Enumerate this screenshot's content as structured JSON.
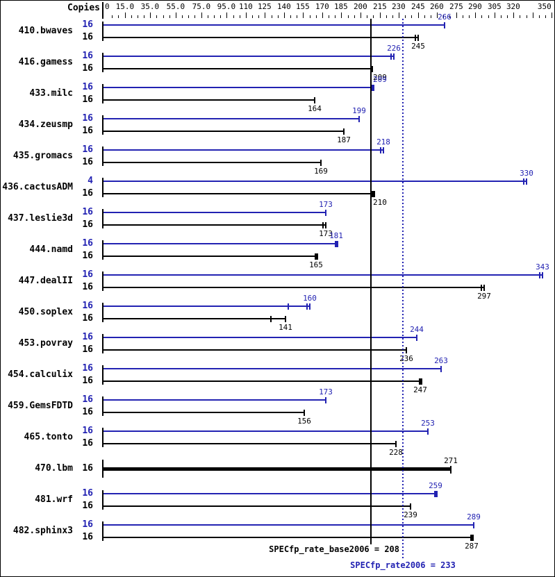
{
  "header": {
    "copies_label": "Copies"
  },
  "colors": {
    "peak_blue": "#2222b2",
    "base_black": "#000000",
    "background": "#ffffff"
  },
  "chart_data": {
    "type": "bar",
    "orientation": "horizontal",
    "title": "",
    "xlabel": "",
    "ylabel": "Copies",
    "xlim": [
      0,
      350
    ],
    "tick_step": 5,
    "grid": false,
    "axis_labels": [
      {
        "v": 0,
        "t": "0"
      },
      {
        "v": 15,
        "t": "15.0"
      },
      {
        "v": 35,
        "t": "35.0"
      },
      {
        "v": 55,
        "t": "55.0"
      },
      {
        "v": 75,
        "t": "75.0"
      },
      {
        "v": 95,
        "t": "95.0"
      },
      {
        "v": 110,
        "t": "110"
      },
      {
        "v": 125,
        "t": "125"
      },
      {
        "v": 140,
        "t": "140"
      },
      {
        "v": 155,
        "t": "155"
      },
      {
        "v": 170,
        "t": "170"
      },
      {
        "v": 185,
        "t": "185"
      },
      {
        "v": 200,
        "t": "200"
      },
      {
        "v": 215,
        "t": "215"
      },
      {
        "v": 230,
        "t": "230"
      },
      {
        "v": 245,
        "t": "245"
      },
      {
        "v": 260,
        "t": "260"
      },
      {
        "v": 275,
        "t": "275"
      },
      {
        "v": 290,
        "t": "290"
      },
      {
        "v": 305,
        "t": "305"
      },
      {
        "v": 320,
        "t": "320"
      },
      {
        "v": 350,
        "t": "350"
      }
    ],
    "extra_tall_ticks": [
      335
    ],
    "categories": [
      "410.bwaves",
      "416.gamess",
      "433.milc",
      "434.zeusmp",
      "435.gromacs",
      "436.cactusADM",
      "437.leslie3d",
      "444.namd",
      "447.dealII",
      "450.soplex",
      "453.povray",
      "454.calculix",
      "459.GemsFDTD",
      "465.tonto",
      "470.lbm",
      "481.wrf",
      "482.sphinx3"
    ],
    "series": [
      {
        "name": "peak",
        "color": "#2222b2",
        "copies": [
          16,
          16,
          16,
          16,
          16,
          4,
          16,
          16,
          16,
          16,
          16,
          16,
          16,
          16,
          null,
          16,
          16
        ],
        "values": [
          266,
          226,
          209,
          199,
          218,
          330,
          173,
          181,
          343,
          160,
          244,
          263,
          173,
          253,
          null,
          259,
          289
        ]
      },
      {
        "name": "base",
        "color": "#000000",
        "copies": [
          16,
          16,
          16,
          16,
          16,
          16,
          16,
          16,
          16,
          16,
          16,
          16,
          16,
          16,
          16,
          16,
          16
        ],
        "values": [
          245,
          209,
          164,
          187,
          169,
          210,
          173,
          165,
          297,
          141,
          236,
          247,
          156,
          228,
          271,
          239,
          287
        ]
      }
    ],
    "reference_lines": [
      {
        "label": "SPECfp_rate_base2006 = 208",
        "value": 208,
        "style": "solid",
        "color": "#000000"
      },
      {
        "label": "SPECfp_rate2006 = 233",
        "value": 233,
        "style": "dotted",
        "color": "#2222b2"
      }
    ]
  },
  "rows": [
    {
      "name": "410.bwaves",
      "peak": {
        "copies": 16,
        "value": 266
      },
      "base": {
        "copies": 16,
        "value": 245,
        "cap": "double"
      }
    },
    {
      "name": "416.gamess",
      "peak": {
        "copies": 16,
        "value": 226,
        "cap": "double"
      },
      "base": {
        "copies": 16,
        "value": 209
      }
    },
    {
      "name": "433.milc",
      "peak": {
        "copies": 16,
        "value": 209,
        "cap": "block"
      },
      "base": {
        "copies": 16,
        "value": 164
      }
    },
    {
      "name": "434.zeusmp",
      "peak": {
        "copies": 16,
        "value": 199
      },
      "base": {
        "copies": 16,
        "value": 187
      }
    },
    {
      "name": "435.gromacs",
      "peak": {
        "copies": 16,
        "value": 218,
        "cap": "double"
      },
      "base": {
        "copies": 16,
        "value": 169
      }
    },
    {
      "name": "436.cactusADM",
      "peak": {
        "copies": 4,
        "value": 330,
        "cap": "double"
      },
      "base": {
        "copies": 16,
        "value": 210,
        "cap": "block"
      }
    },
    {
      "name": "437.leslie3d",
      "peak": {
        "copies": 16,
        "value": 173
      },
      "base": {
        "copies": 16,
        "value": 173,
        "cap": "double"
      }
    },
    {
      "name": "444.namd",
      "peak": {
        "copies": 16,
        "value": 181,
        "cap": "block"
      },
      "base": {
        "copies": 16,
        "value": 165,
        "cap": "block"
      }
    },
    {
      "name": "447.dealII",
      "peak": {
        "copies": 16,
        "value": 343,
        "cap": "double"
      },
      "base": {
        "copies": 16,
        "value": 297,
        "cap": "double"
      }
    },
    {
      "name": "450.soplex",
      "peak": {
        "copies": 16,
        "value": 160,
        "cap": "double",
        "err_lo": 143
      },
      "base": {
        "copies": 16,
        "value": 141,
        "err_lo": 129
      }
    },
    {
      "name": "453.povray",
      "peak": {
        "copies": 16,
        "value": 244
      },
      "base": {
        "copies": 16,
        "value": 236
      }
    },
    {
      "name": "454.calculix",
      "peak": {
        "copies": 16,
        "value": 263
      },
      "base": {
        "copies": 16,
        "value": 247,
        "cap": "block"
      }
    },
    {
      "name": "459.GemsFDTD",
      "peak": {
        "copies": 16,
        "value": 173
      },
      "base": {
        "copies": 16,
        "value": 156
      }
    },
    {
      "name": "465.tonto",
      "peak": {
        "copies": 16,
        "value": 253
      },
      "base": {
        "copies": 16,
        "value": 228
      }
    },
    {
      "name": "470.lbm",
      "peak": null,
      "base": {
        "copies": 16,
        "value": 271,
        "bold": true
      }
    },
    {
      "name": "481.wrf",
      "peak": {
        "copies": 16,
        "value": 259,
        "cap": "block"
      },
      "base": {
        "copies": 16,
        "value": 239
      }
    },
    {
      "name": "482.sphinx3",
      "peak": {
        "copies": 16,
        "value": 289
      },
      "base": {
        "copies": 16,
        "value": 287,
        "cap": "block"
      }
    }
  ]
}
